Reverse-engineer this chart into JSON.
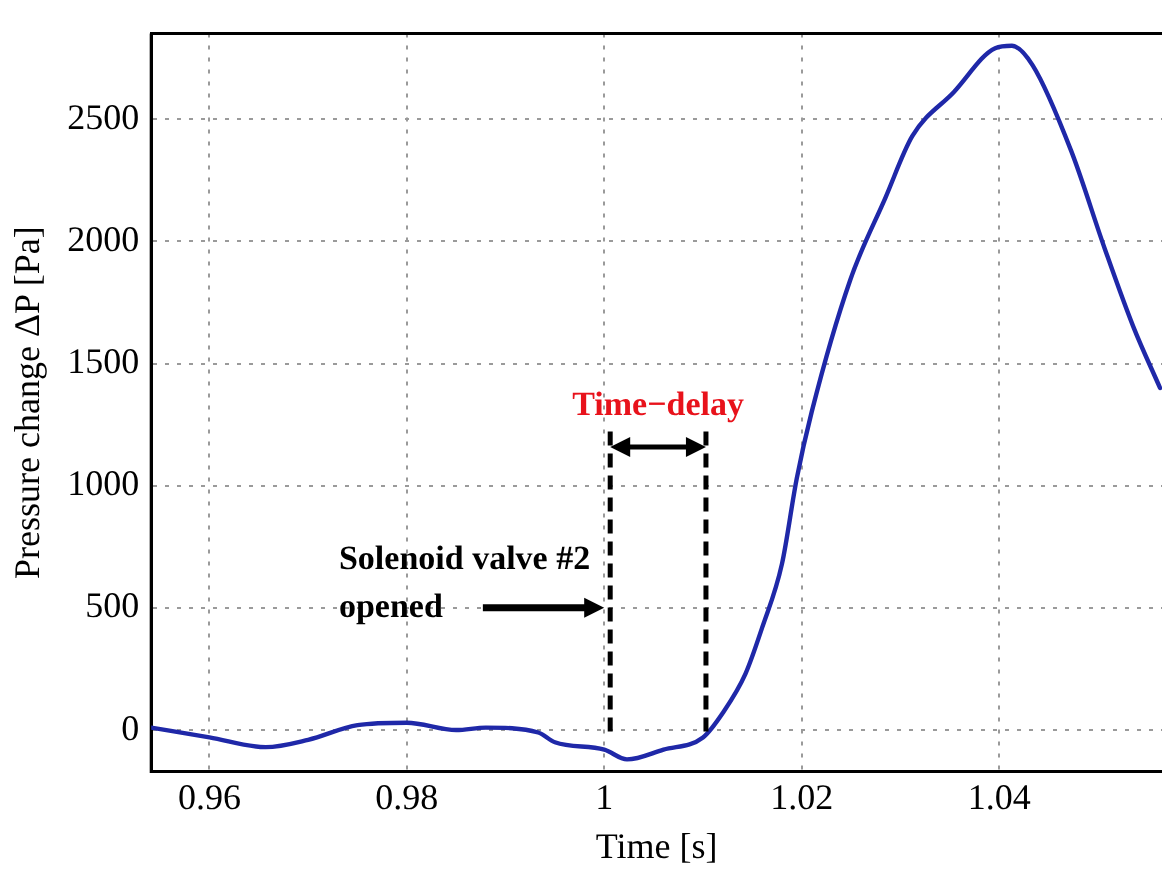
{
  "chart_data": {
    "type": "line",
    "xlabel": "Time [s]",
    "ylabel": "Pressure change ΔP [Pa]",
    "x": [
      0.9541,
      0.96,
      0.9657,
      0.97,
      0.975,
      0.98,
      0.985,
      0.988,
      0.9933,
      0.995,
      1.0,
      1.0023,
      1.006,
      1.01,
      1.012,
      1.0143,
      1.016,
      1.018,
      1.0195,
      1.021,
      1.0249,
      1.0285,
      1.0312,
      1.0354,
      1.0396,
      1.0413,
      1.0434,
      1.0473,
      1.0507,
      1.0536,
      1.0563
    ],
    "series": [
      {
        "color": "#1f28a8",
        "values": [
          10,
          -30,
          -70,
          -40,
          20,
          30,
          0,
          10,
          -10,
          -50,
          -80,
          -120,
          -80,
          -30,
          70,
          230,
          420,
          680,
          1030,
          1300,
          1840,
          2180,
          2430,
          2610,
          2790,
          2800,
          2720,
          2370,
          1970,
          1650,
          1400
        ]
      }
    ],
    "xlim": [
      0.9541,
      1.0565
    ],
    "ylim": [
      -170,
      2850
    ],
    "xticks": [
      0.96,
      0.98,
      1,
      1.02,
      1.04
    ],
    "yticks": [
      0,
      500,
      1000,
      1500,
      2000,
      2500
    ],
    "grid": true,
    "legend": false,
    "marker": "none",
    "line_style": "solid",
    "ref_lines": [
      {
        "axis": "x",
        "value": 1.0006,
        "color": "#000000",
        "line_style": "dashed"
      },
      {
        "axis": "x",
        "value": 1.0103,
        "color": "#000000",
        "line_style": "dashed"
      }
    ],
    "annotations": [
      {
        "text": "Solenoid valve #2\nopened",
        "x": 1.0006,
        "y": 500
      },
      "Time−delay"
    ]
  }
}
